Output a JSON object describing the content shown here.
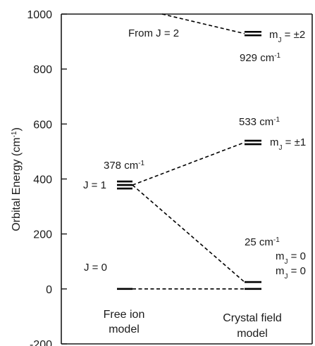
{
  "chart_data": {
    "type": "energy-level-diagram",
    "ylabel": "Orbital Energy (cm",
    "ylabel_sup": "-1",
    "ylabel_close": ")",
    "ylim": [
      -200,
      1000
    ],
    "yticks": [
      1000,
      800,
      600,
      400,
      200,
      0,
      -200
    ],
    "columns": [
      {
        "id": "free",
        "label_line1": "Free ion",
        "label_line2": "model"
      },
      {
        "id": "crystal",
        "label_line1": "Crystal field",
        "label_line2": "model"
      }
    ],
    "levels": [
      {
        "id": "free-j0",
        "column": "free",
        "energy": 0,
        "line_count": 1,
        "label": "J = 0"
      },
      {
        "id": "free-j1",
        "column": "free",
        "energy": 378,
        "line_count": 3,
        "label": "J = 1",
        "energy_label": "378 cm",
        "energy_label_sup": "-1"
      },
      {
        "id": "cf-mj0",
        "column": "crystal",
        "energy": 0,
        "line_count": 1,
        "label_main": "m",
        "label_sub": "J",
        "label_rest": " = 0"
      },
      {
        "id": "cf-mj0-b",
        "column": "crystal",
        "energy": 25,
        "line_count": 1,
        "label_main": "m",
        "label_sub": "J",
        "label_rest": " = 0",
        "energy_label": "25 cm",
        "energy_label_sup": "-1"
      },
      {
        "id": "cf-mj1",
        "column": "crystal",
        "energy": 533,
        "line_count": 2,
        "label_main": "m",
        "label_sub": "J",
        "label_rest": " = ±1",
        "energy_label": "533 cm",
        "energy_label_sup": "-1"
      },
      {
        "id": "cf-mj2",
        "column": "crystal",
        "energy": 929,
        "line_count": 2,
        "label_main": "m",
        "label_sub": "J",
        "label_rest": " = ±2",
        "energy_label": "929 cm",
        "energy_label_sup": "-1"
      }
    ],
    "connectors": [
      {
        "from": "free-j0",
        "to": "cf-mj0"
      },
      {
        "from": "free-j1",
        "to": "cf-mj0-b"
      },
      {
        "from": "free-j1",
        "to": "cf-mj1"
      },
      {
        "from": "j2-origin",
        "to": "cf-mj2"
      }
    ],
    "annotations": {
      "from_j2": "From J = 2"
    }
  }
}
